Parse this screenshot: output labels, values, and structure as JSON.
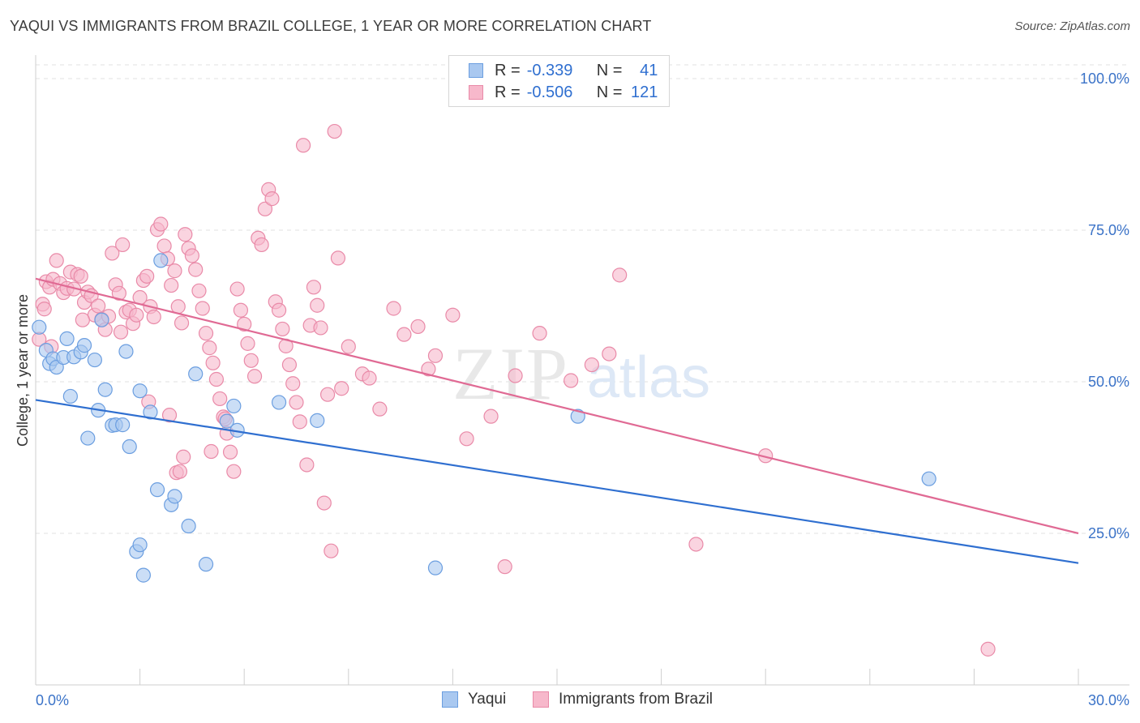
{
  "header": {
    "title": "YAQUI VS IMMIGRANTS FROM BRAZIL COLLEGE, 1 YEAR OR MORE CORRELATION CHART",
    "source": "Source: ZipAtlas.com"
  },
  "legend": {
    "rows": [
      {
        "r_label": "R =",
        "r_value": "-0.339",
        "n_label": "N =",
        "n_value": "41"
      },
      {
        "r_label": "R =",
        "r_value": "-0.506",
        "n_label": "N =",
        "n_value": "121"
      }
    ]
  },
  "watermark": {
    "zip": "ZIP",
    "atlas": "atlas"
  },
  "colors": {
    "yaqui_fill": "#a9c8f0",
    "yaqui_stroke": "#6b9ee0",
    "yaqui_line": "#2f6fd0",
    "brazil_fill": "#f7b8cb",
    "brazil_stroke": "#e98aa8",
    "brazil_line": "#e06a94",
    "tick_label": "#3b73c8",
    "grid": "#e0e0e0"
  },
  "chart_data": {
    "type": "scatter",
    "title": "YAQUI VS IMMIGRANTS FROM BRAZIL COLLEGE, 1 YEAR OR MORE CORRELATION CHART",
    "xlabel": "",
    "ylabel": "College, 1 year or more",
    "xlim": [
      0,
      30
    ],
    "ylim": [
      0,
      100
    ],
    "x_ticks": [
      "0.0%",
      "30.0%"
    ],
    "y_ticks": [
      "100.0%",
      "75.0%",
      "50.0%",
      "25.0%"
    ],
    "y_tick_values": [
      100,
      75,
      50,
      25
    ],
    "grid": true,
    "legend_position": "top-center",
    "series": [
      {
        "name": "Yaqui",
        "r": -0.339,
        "n": 41,
        "trend": {
          "x": [
            0,
            30
          ],
          "y": [
            47.0,
            20.1
          ]
        },
        "points": [
          [
            0.1,
            59.0
          ],
          [
            0.3,
            55.2
          ],
          [
            0.4,
            53.0
          ],
          [
            0.5,
            53.8
          ],
          [
            0.6,
            52.4
          ],
          [
            0.8,
            54.0
          ],
          [
            0.9,
            57.1
          ],
          [
            1.0,
            47.6
          ],
          [
            1.1,
            54.1
          ],
          [
            1.3,
            54.9
          ],
          [
            1.4,
            56.0
          ],
          [
            1.5,
            40.7
          ],
          [
            1.7,
            53.6
          ],
          [
            1.8,
            45.3
          ],
          [
            1.9,
            60.2
          ],
          [
            2.0,
            48.7
          ],
          [
            2.2,
            42.8
          ],
          [
            2.3,
            42.9
          ],
          [
            2.5,
            42.9
          ],
          [
            2.6,
            55.0
          ],
          [
            2.7,
            39.3
          ],
          [
            2.9,
            22.0
          ],
          [
            3.0,
            23.1
          ],
          [
            3.0,
            48.5
          ],
          [
            3.1,
            18.1
          ],
          [
            3.3,
            45.0
          ],
          [
            3.5,
            32.2
          ],
          [
            3.6,
            70.0
          ],
          [
            3.9,
            29.7
          ],
          [
            4.0,
            31.1
          ],
          [
            4.4,
            26.2
          ],
          [
            4.6,
            51.3
          ],
          [
            4.9,
            19.9
          ],
          [
            5.5,
            43.5
          ],
          [
            5.7,
            46.0
          ],
          [
            5.8,
            42.0
          ],
          [
            7.0,
            46.6
          ],
          [
            8.1,
            43.6
          ],
          [
            11.5,
            19.3
          ],
          [
            15.6,
            44.3
          ],
          [
            25.7,
            34.0
          ]
        ]
      },
      {
        "name": "Immigrants from Brazil",
        "r": -0.506,
        "n": 121,
        "trend": {
          "x": [
            0,
            30
          ],
          "y": [
            67.0,
            25.0
          ]
        },
        "points": [
          [
            0.1,
            57.0
          ],
          [
            0.2,
            62.8
          ],
          [
            0.3,
            66.5
          ],
          [
            0.4,
            65.6
          ],
          [
            0.5,
            66.9
          ],
          [
            0.6,
            70.0
          ],
          [
            0.7,
            66.2
          ],
          [
            0.8,
            64.7
          ],
          [
            0.9,
            65.4
          ],
          [
            1.0,
            68.1
          ],
          [
            1.1,
            65.3
          ],
          [
            1.2,
            67.7
          ],
          [
            1.3,
            67.4
          ],
          [
            1.4,
            63.1
          ],
          [
            1.5,
            64.8
          ],
          [
            1.6,
            64.2
          ],
          [
            1.7,
            61.0
          ],
          [
            1.8,
            62.5
          ],
          [
            1.9,
            60.3
          ],
          [
            2.0,
            58.6
          ],
          [
            2.1,
            60.8
          ],
          [
            2.2,
            71.2
          ],
          [
            2.3,
            66.0
          ],
          [
            2.4,
            64.6
          ],
          [
            2.5,
            72.6
          ],
          [
            2.6,
            61.5
          ],
          [
            2.7,
            61.8
          ],
          [
            2.8,
            59.6
          ],
          [
            2.9,
            61.0
          ],
          [
            3.0,
            63.9
          ],
          [
            3.1,
            66.7
          ],
          [
            3.2,
            67.4
          ],
          [
            3.3,
            62.4
          ],
          [
            3.4,
            60.7
          ],
          [
            3.5,
            75.1
          ],
          [
            3.6,
            76.0
          ],
          [
            3.7,
            72.4
          ],
          [
            3.8,
            70.3
          ],
          [
            3.9,
            65.9
          ],
          [
            4.0,
            68.3
          ],
          [
            4.1,
            62.4
          ],
          [
            4.2,
            59.7
          ],
          [
            4.3,
            74.3
          ],
          [
            4.4,
            72.0
          ],
          [
            4.5,
            70.8
          ],
          [
            4.6,
            68.5
          ],
          [
            4.7,
            65.0
          ],
          [
            4.8,
            62.1
          ],
          [
            4.9,
            58.0
          ],
          [
            5.0,
            55.6
          ],
          [
            5.1,
            53.1
          ],
          [
            5.2,
            50.4
          ],
          [
            5.3,
            47.2
          ],
          [
            5.4,
            44.2
          ],
          [
            5.5,
            41.5
          ],
          [
            5.6,
            38.4
          ],
          [
            5.7,
            35.2
          ],
          [
            5.8,
            65.3
          ],
          [
            5.9,
            61.8
          ],
          [
            6.0,
            59.5
          ],
          [
            6.1,
            56.3
          ],
          [
            6.2,
            53.5
          ],
          [
            6.3,
            50.9
          ],
          [
            6.4,
            73.7
          ],
          [
            6.5,
            72.6
          ],
          [
            6.6,
            78.5
          ],
          [
            6.7,
            81.7
          ],
          [
            6.8,
            80.2
          ],
          [
            6.9,
            63.2
          ],
          [
            7.0,
            61.8
          ],
          [
            7.1,
            58.7
          ],
          [
            7.2,
            55.9
          ],
          [
            7.3,
            52.8
          ],
          [
            7.4,
            49.7
          ],
          [
            7.5,
            46.6
          ],
          [
            7.6,
            43.4
          ],
          [
            7.7,
            89.0
          ],
          [
            7.8,
            36.3
          ],
          [
            7.9,
            59.3
          ],
          [
            8.0,
            65.6
          ],
          [
            8.1,
            62.6
          ],
          [
            8.2,
            58.9
          ],
          [
            8.3,
            30.0
          ],
          [
            8.4,
            47.9
          ],
          [
            8.5,
            22.1
          ],
          [
            8.6,
            91.3
          ],
          [
            8.7,
            70.4
          ],
          [
            8.8,
            48.9
          ],
          [
            9.0,
            55.8
          ],
          [
            9.4,
            51.3
          ],
          [
            9.6,
            50.6
          ],
          [
            9.9,
            45.5
          ],
          [
            10.3,
            62.1
          ],
          [
            10.6,
            57.8
          ],
          [
            11.0,
            59.1
          ],
          [
            11.3,
            52.1
          ],
          [
            11.5,
            54.3
          ],
          [
            12.0,
            61.0
          ],
          [
            12.4,
            40.6
          ],
          [
            13.1,
            44.3
          ],
          [
            13.5,
            19.5
          ],
          [
            13.8,
            51.0
          ],
          [
            14.5,
            58.0
          ],
          [
            15.4,
            50.2
          ],
          [
            16.0,
            52.8
          ],
          [
            16.5,
            54.6
          ],
          [
            16.8,
            67.6
          ],
          [
            19.0,
            23.2
          ],
          [
            21.0,
            37.8
          ],
          [
            27.4,
            5.9
          ],
          [
            0.25,
            62.0
          ],
          [
            0.45,
            55.8
          ],
          [
            1.35,
            60.2
          ],
          [
            2.45,
            58.2
          ],
          [
            3.25,
            46.7
          ],
          [
            4.05,
            35.0
          ],
          [
            4.25,
            37.6
          ],
          [
            5.05,
            38.5
          ],
          [
            5.45,
            43.9
          ],
          [
            3.85,
            44.5
          ],
          [
            4.15,
            35.2
          ]
        ]
      }
    ]
  },
  "bottom_legend": {
    "items": [
      "Yaqui",
      "Immigrants from Brazil"
    ]
  }
}
